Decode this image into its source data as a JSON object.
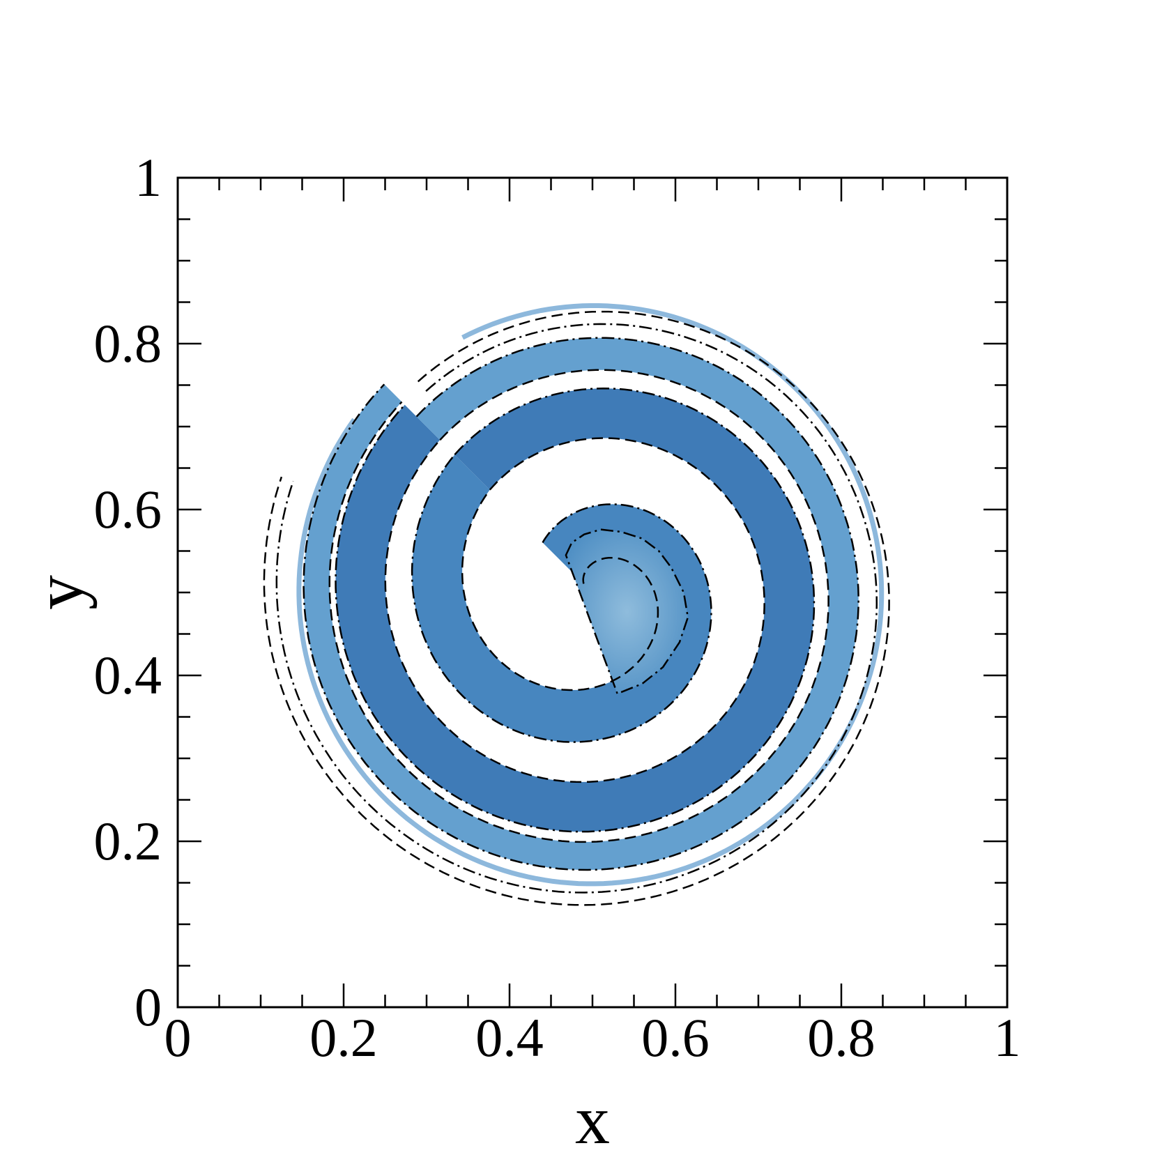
{
  "chart_data": {
    "type": "contour",
    "xlabel": "x",
    "ylabel": "y",
    "xlim": [
      0,
      1
    ],
    "ylim": [
      0,
      1
    ],
    "x_ticks": [
      {
        "value": 0,
        "label": "0"
      },
      {
        "value": 0.2,
        "label": "0.2"
      },
      {
        "value": 0.4,
        "label": "0.4"
      },
      {
        "value": 0.6,
        "label": "0.6"
      },
      {
        "value": 0.8,
        "label": "0.8"
      },
      {
        "value": 1,
        "label": "1"
      }
    ],
    "y_ticks": [
      {
        "value": 0,
        "label": "0"
      },
      {
        "value": 0.2,
        "label": "0.2"
      },
      {
        "value": 0.4,
        "label": "0.4"
      },
      {
        "value": 0.6,
        "label": "0.6"
      },
      {
        "value": 0.8,
        "label": "0.8"
      },
      {
        "value": 1,
        "label": "1"
      }
    ],
    "minor_tick_step": 0.05,
    "grid": false,
    "field_color_light": "#8fbcdc",
    "field_color_dark": "#2c6aa6",
    "outer_filament_color": "#8db8dc",
    "spiral": {
      "center": [
        0.5,
        0.5
      ],
      "turns": [
        {
          "r_inner_start": 0.015,
          "r_inner_end": 0.175,
          "r_outer_start": 0.085,
          "r_outer_end": 0.235,
          "color": "#3d7fbc"
        },
        {
          "r_inner_start": 0.175,
          "r_inner_end": 0.26,
          "r_outer_start": 0.235,
          "r_outer_end": 0.32,
          "color": "#3574b3"
        },
        {
          "r_inner_start": 0.26,
          "r_inner_end": 0.325,
          "r_outer_start": 0.3,
          "r_outer_end": 0.355,
          "color": "#5c9bcc"
        }
      ],
      "outer_contour_pairs": [
        {
          "r_start": 0.315,
          "r_end": 0.385,
          "extent_deg": 330
        },
        {
          "r_start": 0.33,
          "r_end": 0.4,
          "extent_deg": 330
        }
      ]
    }
  }
}
